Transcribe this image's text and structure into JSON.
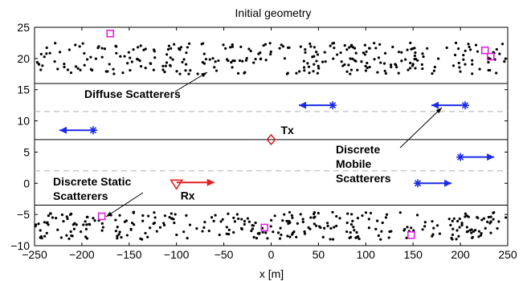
{
  "chart_data": {
    "type": "scatter",
    "title": "Initial geometry",
    "xlabel": "x [m]",
    "ylabel": "",
    "xlim": [
      -250,
      250
    ],
    "ylim": [
      -10,
      25
    ],
    "xticks": [
      -250,
      -200,
      -150,
      -100,
      -50,
      0,
      50,
      100,
      150,
      200,
      250
    ],
    "yticks": [
      -10,
      -5,
      0,
      5,
      10,
      15,
      20,
      25
    ],
    "grid": false,
    "colors": {
      "diffuse": "#000000",
      "static": "#e020e0",
      "mobile": "#1a2be8",
      "tx": "#d02020",
      "rx": "#e02020",
      "road_edge": "#000000",
      "lane_line": "#b0b0b0"
    },
    "road_edges_y": [
      16,
      7,
      -3.5
    ],
    "lane_lines_y": [
      11.5,
      2
    ],
    "diffuse_bands": [
      {
        "name": "upper",
        "x_range": [
          -250,
          250
        ],
        "y_range": [
          17.5,
          22.5
        ],
        "count": 300
      },
      {
        "name": "lower",
        "x_range": [
          -250,
          250
        ],
        "y_range": [
          -9,
          -4.5
        ],
        "count": 300
      }
    ],
    "static_scatterers": [
      {
        "x": -170,
        "y": 24
      },
      {
        "x": 226,
        "y": 21.3
      },
      {
        "x": 232,
        "y": 20.3
      },
      {
        "x": -179,
        "y": -5.3
      },
      {
        "x": -7,
        "y": -7.1
      },
      {
        "x": 148,
        "y": -8.3
      }
    ],
    "mobile_scatterers": [
      {
        "x": 65,
        "y": 12.5,
        "dir": -1
      },
      {
        "x": 205,
        "y": 12.5,
        "dir": -1
      },
      {
        "x": -188,
        "y": 8.5,
        "dir": -1
      },
      {
        "x": 200,
        "y": 4.2,
        "dir": 1
      },
      {
        "x": 155,
        "y": 0,
        "dir": 1
      }
    ],
    "tx": {
      "x": 0,
      "y": 7
    },
    "rx": {
      "x": -100,
      "y": 0,
      "dir": 1
    },
    "annotations": [
      {
        "text": "Tx"
      },
      {
        "text": "Rx"
      },
      {
        "text": "Diffuse Scatterers"
      },
      {
        "lines": [
          "Discrete",
          "Mobile",
          "Scatterers"
        ]
      },
      {
        "lines": [
          "Discrete Static",
          "Scatterers"
        ]
      }
    ]
  }
}
